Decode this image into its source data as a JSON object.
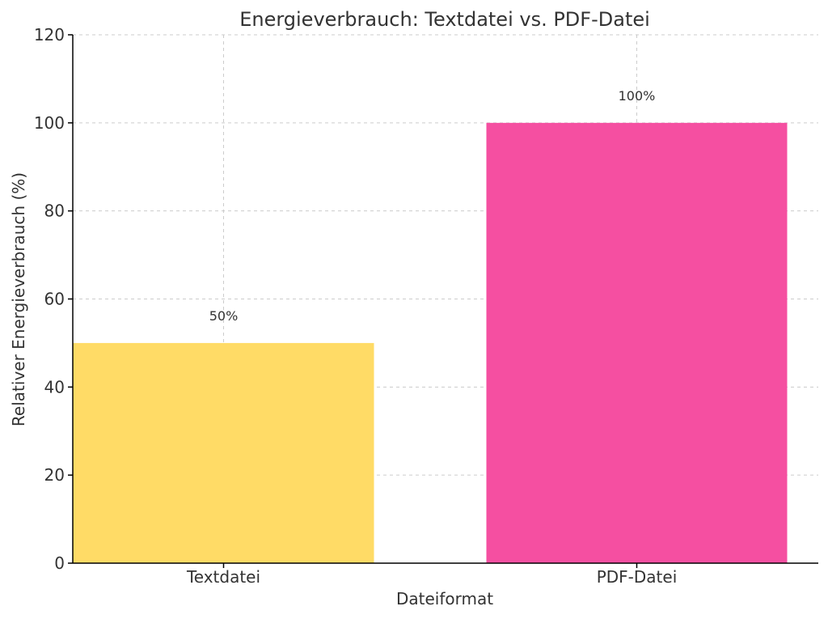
{
  "chart_data": {
    "type": "bar",
    "title": "Energieverbrauch: Textdatei vs. PDF-Datei",
    "xlabel": "Dateiformat",
    "ylabel": "Relativer Energieverbrauch (%)",
    "categories": [
      "Textdatei",
      "PDF-Datei"
    ],
    "values": [
      50,
      100
    ],
    "data_labels": [
      "50%",
      "100%"
    ],
    "ylim": [
      0,
      120
    ],
    "yticks": [
      0,
      20,
      40,
      60,
      80,
      100,
      120
    ],
    "grid": true,
    "colors": [
      "#FFDB66",
      "#F54FA1"
    ],
    "axis_color": "#000000",
    "grid_color": "#CCCCCC",
    "text_color": "#333333"
  }
}
